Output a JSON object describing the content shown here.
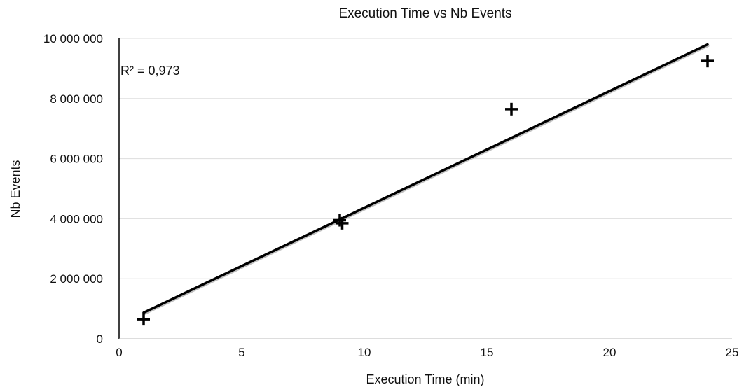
{
  "chart_data": {
    "type": "scatter",
    "title": "Execution Time vs Nb Events",
    "xlabel": "Execution Time (min)",
    "ylabel": "Nb Events",
    "xlim": [
      0,
      25
    ],
    "ylim": [
      0,
      10000000
    ],
    "x_ticks": [
      0,
      5,
      10,
      15,
      20,
      25
    ],
    "x_tick_labels": [
      "0",
      "5",
      "10",
      "15",
      "20",
      "25"
    ],
    "y_ticks": [
      0,
      2000000,
      4000000,
      6000000,
      8000000,
      10000000
    ],
    "y_tick_labels": [
      "0",
      "2 000 000",
      "4 000 000",
      "6 000 000",
      "8 000 000",
      "10 000 000"
    ],
    "grid": "horizontal",
    "marker": "plus",
    "colors": {
      "marker": "#000000",
      "trendline": "#000000",
      "grid": "#dddddd",
      "axis": "#000000"
    },
    "series": [
      {
        "x": [
          1,
          9,
          9.1,
          16,
          24
        ],
        "y": [
          650000,
          3950000,
          3850000,
          7650000,
          9250000
        ]
      }
    ],
    "trendline": {
      "type": "linear",
      "x": [
        1,
        24
      ],
      "y": [
        870000,
        9800000
      ],
      "r2_label": "R² = 0,973"
    }
  }
}
